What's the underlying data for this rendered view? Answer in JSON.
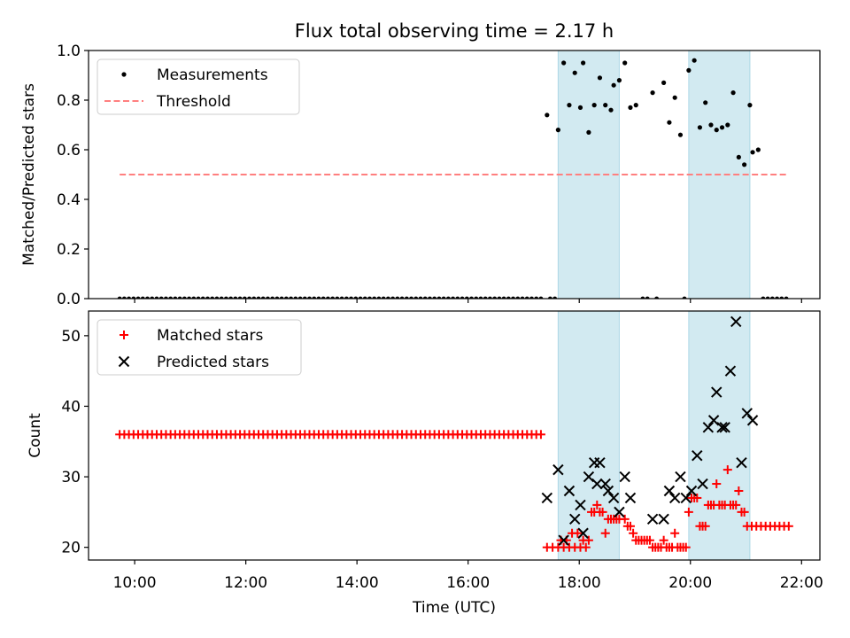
{
  "title": "Flux total observing time = 2.17 h",
  "colors": {
    "span": "#add8e6",
    "threshold": "#ff7f7f",
    "measurements": "#000000",
    "matched": "#ff0000",
    "predicted": "#000000"
  },
  "chart_data": [
    {
      "type": "scatter",
      "ylabel": "Matched/Predicted stars",
      "xlim": [
        9.17,
        22.33
      ],
      "ylim": [
        0,
        1
      ],
      "yticks": [
        0.0,
        0.2,
        0.4,
        0.6,
        0.8,
        1.0
      ],
      "ytick_labels": [
        "0.0",
        "0.2",
        "0.4",
        "0.6",
        "0.8",
        "1.0"
      ],
      "legend": {
        "placement": "upper-left",
        "entries": [
          "Measurements",
          "Threshold"
        ]
      },
      "shaded_spans": [
        [
          17.62,
          18.72
        ],
        [
          19.97,
          21.07
        ]
      ],
      "threshold": {
        "y": 0.5,
        "x_range": [
          9.73,
          21.77
        ]
      },
      "series": [
        {
          "name": "Measurements",
          "points": [
            [
              17.42,
              0.74
            ],
            [
              17.62,
              0.68
            ],
            [
              17.72,
              0.95
            ],
            [
              17.82,
              0.78
            ],
            [
              17.92,
              0.91
            ],
            [
              18.02,
              0.77
            ],
            [
              18.07,
              0.95
            ],
            [
              18.17,
              0.67
            ],
            [
              18.27,
              0.78
            ],
            [
              18.37,
              0.89
            ],
            [
              18.47,
              0.78
            ],
            [
              18.57,
              0.76
            ],
            [
              18.62,
              0.86
            ],
            [
              18.72,
              0.88
            ],
            [
              18.82,
              0.95
            ],
            [
              18.92,
              0.77
            ],
            [
              19.02,
              0.78
            ],
            [
              19.32,
              0.83
            ],
            [
              19.52,
              0.87
            ],
            [
              19.62,
              0.71
            ],
            [
              19.72,
              0.81
            ],
            [
              19.82,
              0.66
            ],
            [
              19.97,
              0.92
            ],
            [
              20.07,
              0.96
            ],
            [
              20.17,
              0.69
            ],
            [
              20.27,
              0.79
            ],
            [
              20.37,
              0.7
            ],
            [
              20.47,
              0.68
            ],
            [
              20.57,
              0.69
            ],
            [
              20.67,
              0.7
            ],
            [
              20.77,
              0.83
            ],
            [
              20.87,
              0.57
            ],
            [
              20.97,
              0.54
            ],
            [
              21.07,
              0.78
            ],
            [
              21.12,
              0.59
            ],
            [
              21.22,
              0.6
            ]
          ],
          "zero_points_x_range": [
            9.73,
            21.77
          ],
          "zero_points_step": 0.0833
        }
      ]
    },
    {
      "type": "scatter",
      "xlabel": "Time (UTC)",
      "ylabel": "Count",
      "xlim": [
        9.17,
        22.33
      ],
      "ylim": [
        18.2,
        53.5
      ],
      "xticks": [
        10,
        12,
        14,
        16,
        18,
        20,
        22
      ],
      "xtick_labels": [
        "10:00",
        "12:00",
        "14:00",
        "16:00",
        "18:00",
        "20:00",
        "22:00"
      ],
      "yticks": [
        20,
        30,
        40,
        50
      ],
      "ytick_labels": [
        "20",
        "30",
        "40",
        "50"
      ],
      "legend": {
        "placement": "upper-left",
        "entries": [
          "Matched stars",
          "Predicted stars"
        ]
      },
      "shaded_spans": [
        [
          17.62,
          18.72
        ],
        [
          19.97,
          21.07
        ]
      ],
      "series": [
        {
          "name": "Matched stars",
          "constant_run": {
            "y": 36,
            "x_range": [
              9.73,
              17.33
            ],
            "step": 0.0833
          },
          "points": [
            [
              17.42,
              20
            ],
            [
              17.52,
              20
            ],
            [
              17.62,
              20
            ],
            [
              17.67,
              21
            ],
            [
              17.72,
              20
            ],
            [
              17.77,
              21
            ],
            [
              17.82,
              20
            ],
            [
              17.87,
              22
            ],
            [
              17.92,
              20
            ],
            [
              17.97,
              22
            ],
            [
              18.02,
              20
            ],
            [
              18.07,
              21
            ],
            [
              18.12,
              20
            ],
            [
              18.17,
              21
            ],
            [
              18.22,
              25
            ],
            [
              18.27,
              25
            ],
            [
              18.32,
              26
            ],
            [
              18.37,
              25
            ],
            [
              18.42,
              25
            ],
            [
              18.47,
              22
            ],
            [
              18.52,
              24
            ],
            [
              18.57,
              24
            ],
            [
              18.62,
              24
            ],
            [
              18.67,
              24
            ],
            [
              18.72,
              24
            ],
            [
              18.82,
              24
            ],
            [
              18.87,
              23
            ],
            [
              18.92,
              23
            ],
            [
              18.97,
              22
            ],
            [
              19.02,
              21
            ],
            [
              19.07,
              21
            ],
            [
              19.12,
              21
            ],
            [
              19.17,
              21
            ],
            [
              19.22,
              21
            ],
            [
              19.27,
              21
            ],
            [
              19.32,
              20
            ],
            [
              19.37,
              20
            ],
            [
              19.42,
              20
            ],
            [
              19.47,
              20
            ],
            [
              19.52,
              21
            ],
            [
              19.57,
              20
            ],
            [
              19.62,
              20
            ],
            [
              19.67,
              20
            ],
            [
              19.72,
              22
            ],
            [
              19.77,
              20
            ],
            [
              19.82,
              20
            ],
            [
              19.87,
              20
            ],
            [
              19.92,
              20
            ],
            [
              19.97,
              25
            ],
            [
              20.02,
              27
            ],
            [
              20.07,
              27
            ],
            [
              20.12,
              27
            ],
            [
              20.17,
              23
            ],
            [
              20.22,
              23
            ],
            [
              20.27,
              23
            ],
            [
              20.32,
              26
            ],
            [
              20.37,
              26
            ],
            [
              20.42,
              26
            ],
            [
              20.47,
              29
            ],
            [
              20.52,
              26
            ],
            [
              20.57,
              26
            ],
            [
              20.62,
              26
            ],
            [
              20.67,
              31
            ],
            [
              20.72,
              26
            ],
            [
              20.77,
              26
            ],
            [
              20.82,
              26
            ],
            [
              20.87,
              28
            ],
            [
              20.92,
              25
            ],
            [
              20.97,
              25
            ]
          ],
          "constant_run_tail": {
            "y": 23,
            "x_range": [
              21.02,
              21.77
            ],
            "step": 0.0833
          }
        },
        {
          "name": "Predicted stars",
          "points": [
            [
              17.42,
              27
            ],
            [
              17.62,
              31
            ],
            [
              17.72,
              21
            ],
            [
              17.82,
              28
            ],
            [
              17.92,
              24
            ],
            [
              18.02,
              26
            ],
            [
              18.07,
              22
            ],
            [
              18.17,
              30
            ],
            [
              18.27,
              32
            ],
            [
              18.32,
              29
            ],
            [
              18.37,
              32
            ],
            [
              18.47,
              29
            ],
            [
              18.52,
              28
            ],
            [
              18.62,
              27
            ],
            [
              18.72,
              25
            ],
            [
              18.82,
              30
            ],
            [
              18.92,
              27
            ],
            [
              19.32,
              24
            ],
            [
              19.52,
              24
            ],
            [
              19.62,
              28
            ],
            [
              19.72,
              27
            ],
            [
              19.82,
              30
            ],
            [
              19.92,
              27
            ],
            [
              20.02,
              28
            ],
            [
              20.12,
              33
            ],
            [
              20.22,
              29
            ],
            [
              20.32,
              37
            ],
            [
              20.42,
              38
            ],
            [
              20.47,
              42
            ],
            [
              20.57,
              37
            ],
            [
              20.62,
              37
            ],
            [
              20.72,
              45
            ],
            [
              20.82,
              52
            ],
            [
              20.92,
              32
            ],
            [
              21.02,
              39
            ],
            [
              21.12,
              38
            ]
          ]
        }
      ]
    }
  ]
}
